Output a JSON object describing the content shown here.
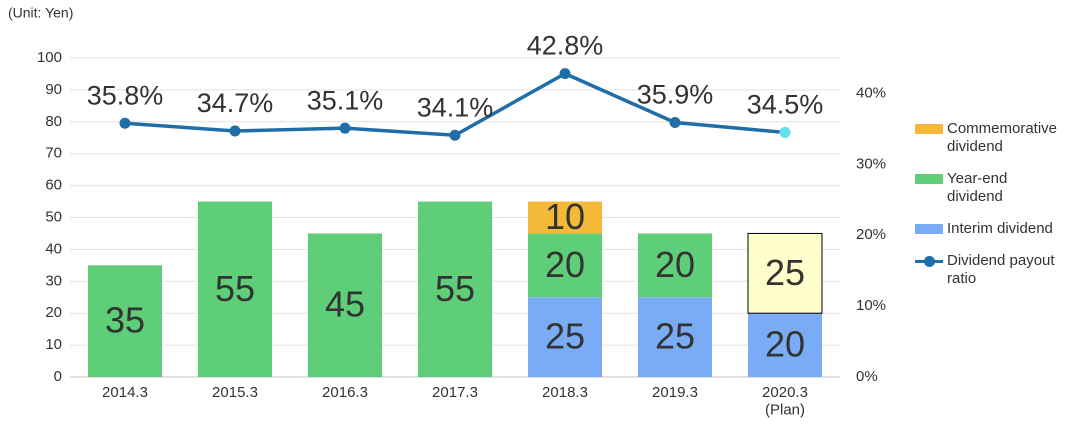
{
  "chart_data": {
    "type": "bar_line",
    "unit_label": "(Unit: Yen)",
    "categories": [
      "2014.3",
      "2015.3",
      "2016.3",
      "2017.3",
      "2018.3",
      "2019.3",
      "2020.3\n(Plan)"
    ],
    "series": [
      {
        "name": "Commemorative dividend",
        "kind": "bar",
        "color": "#f5b93a",
        "values": [
          null,
          null,
          null,
          null,
          10,
          null,
          null
        ]
      },
      {
        "name": "Year-end dividend",
        "kind": "bar",
        "color": "#5ecf78",
        "values": [
          35,
          55,
          45,
          55,
          20,
          20,
          25
        ],
        "point_colors": [
          null,
          null,
          null,
          null,
          null,
          null,
          "#ffffcc"
        ],
        "point_borders": [
          null,
          null,
          null,
          null,
          null,
          null,
          "#000000"
        ]
      },
      {
        "name": "Interim dividend",
        "kind": "bar",
        "color": "#7aacf5",
        "values": [
          null,
          null,
          null,
          null,
          25,
          25,
          20
        ]
      },
      {
        "name": "Dividend payout ratio",
        "kind": "line",
        "axis": "y2",
        "color": "#1f6ea8",
        "values": [
          35.8,
          34.7,
          35.1,
          34.1,
          42.8,
          35.9,
          34.5
        ],
        "value_labels": [
          "35.8%",
          "34.7%",
          "35.1%",
          "34.1%",
          "42.8%",
          "35.9%",
          "34.5%"
        ],
        "point_colors": [
          null,
          null,
          null,
          null,
          null,
          null,
          "#5fe0f0"
        ]
      }
    ],
    "ylim": [
      0,
      100
    ],
    "yticks": [
      0,
      10,
      20,
      30,
      40,
      50,
      60,
      70,
      80,
      90,
      100
    ],
    "y2lim": [
      0,
      45
    ],
    "y2ticks": [
      {
        "value": 0,
        "label": "0%"
      },
      {
        "value": 10,
        "label": "10%"
      },
      {
        "value": 20,
        "label": "20%"
      },
      {
        "value": 30,
        "label": "30%"
      },
      {
        "value": 40,
        "label": "40%"
      }
    ],
    "grid": true,
    "legend": "right"
  }
}
